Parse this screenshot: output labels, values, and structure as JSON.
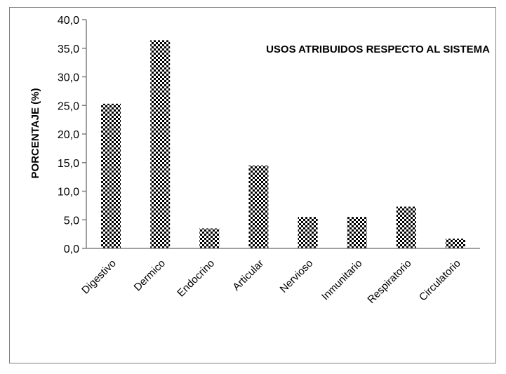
{
  "chart_data": {
    "type": "bar",
    "title": "USOS ATRIBUIDOS RESPECTO AL SISTEMA",
    "ylabel": "PORCENTAJE (%)",
    "xlabel": "",
    "categories": [
      "Digestivo",
      "Dermico",
      "Endocrino",
      "Articular",
      "Nervioso",
      "Inmunitario",
      "Respiratorio",
      "Circulatorio"
    ],
    "values": [
      25.3,
      36.4,
      3.5,
      14.5,
      5.5,
      5.5,
      7.3,
      1.7
    ],
    "ylim": [
      0,
      40
    ],
    "yticks": [
      "0,0",
      "5,0",
      "10,0",
      "15,0",
      "20,0",
      "25,0",
      "30,0",
      "35,0",
      "40,0"
    ],
    "grid": false,
    "legend": "none",
    "bar_pattern": "checkerboard",
    "colors": {
      "bar_fill": "#000000",
      "bar_bg": "#ffffff",
      "axis": "#808080",
      "frame": "#7f7f7f"
    }
  }
}
